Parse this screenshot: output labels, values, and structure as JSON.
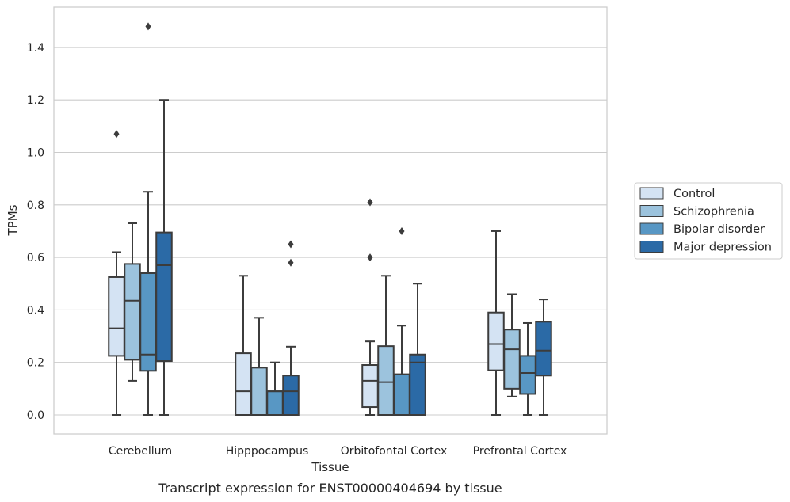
{
  "chart_data": {
    "type": "box",
    "caption": "Transcript expression for ENST00000404694 by tissue",
    "xlabel": "Tissue",
    "ylabel": "TPMs",
    "ylim": [
      -0.07,
      1.55
    ],
    "yticks": [
      "0.0",
      "0.2",
      "0.4",
      "0.6",
      "0.8",
      "1.0",
      "1.2",
      "1.4"
    ],
    "grid": true,
    "legend_position": "right",
    "categories": [
      "Cerebellum",
      "Hipppocampus",
      "Orbitofontal Cortex",
      "Prefrontal Cortex"
    ],
    "series": [
      {
        "name": "Control",
        "color": "#d4e3f3",
        "boxes": [
          {
            "min": 0.0,
            "q1": 0.225,
            "median": 0.33,
            "q3": 0.525,
            "max": 0.62,
            "outliers": [
              1.07
            ]
          },
          {
            "min": 0.0,
            "q1": 0.0,
            "median": 0.09,
            "q3": 0.235,
            "max": 0.53,
            "outliers": []
          },
          {
            "min": 0.0,
            "q1": 0.03,
            "median": 0.13,
            "q3": 0.19,
            "max": 0.28,
            "outliers": [
              0.6,
              0.81
            ]
          },
          {
            "min": 0.0,
            "q1": 0.17,
            "median": 0.27,
            "q3": 0.39,
            "max": 0.7,
            "outliers": []
          }
        ]
      },
      {
        "name": "Schizophrenia",
        "color": "#9cc3dd",
        "boxes": [
          {
            "min": 0.13,
            "q1": 0.21,
            "median": 0.435,
            "q3": 0.575,
            "max": 0.73,
            "outliers": []
          },
          {
            "min": 0.0,
            "q1": 0.0,
            "median": 0.0,
            "q3": 0.18,
            "max": 0.37,
            "outliers": []
          },
          {
            "min": 0.0,
            "q1": 0.0,
            "median": 0.125,
            "q3": 0.262,
            "max": 0.53,
            "outliers": []
          },
          {
            "min": 0.07,
            "q1": 0.1,
            "median": 0.25,
            "q3": 0.325,
            "max": 0.46,
            "outliers": []
          }
        ]
      },
      {
        "name": "Bipolar disorder",
        "color": "#5897c4",
        "boxes": [
          {
            "min": 0.0,
            "q1": 0.168,
            "median": 0.23,
            "q3": 0.54,
            "max": 0.85,
            "outliers": [
              1.48
            ]
          },
          {
            "min": 0.0,
            "q1": 0.0,
            "median": 0.09,
            "q3": 0.09,
            "max": 0.2,
            "outliers": []
          },
          {
            "min": 0.0,
            "q1": 0.0,
            "median": 0.0,
            "q3": 0.155,
            "max": 0.34,
            "outliers": [
              0.7
            ]
          },
          {
            "min": 0.0,
            "q1": 0.08,
            "median": 0.16,
            "q3": 0.225,
            "max": 0.35,
            "outliers": []
          }
        ]
      },
      {
        "name": "Major depression",
        "color": "#2b6aa6",
        "boxes": [
          {
            "min": 0.0,
            "q1": 0.205,
            "median": 0.57,
            "q3": 0.695,
            "max": 1.2,
            "outliers": []
          },
          {
            "min": 0.0,
            "q1": 0.0,
            "median": 0.09,
            "q3": 0.15,
            "max": 0.26,
            "outliers": [
              0.58,
              0.65
            ]
          },
          {
            "min": 0.0,
            "q1": 0.0,
            "median": 0.2,
            "q3": 0.23,
            "max": 0.5,
            "outliers": []
          },
          {
            "min": 0.0,
            "q1": 0.15,
            "median": 0.245,
            "q3": 0.355,
            "max": 0.44,
            "outliers": []
          }
        ]
      }
    ]
  }
}
